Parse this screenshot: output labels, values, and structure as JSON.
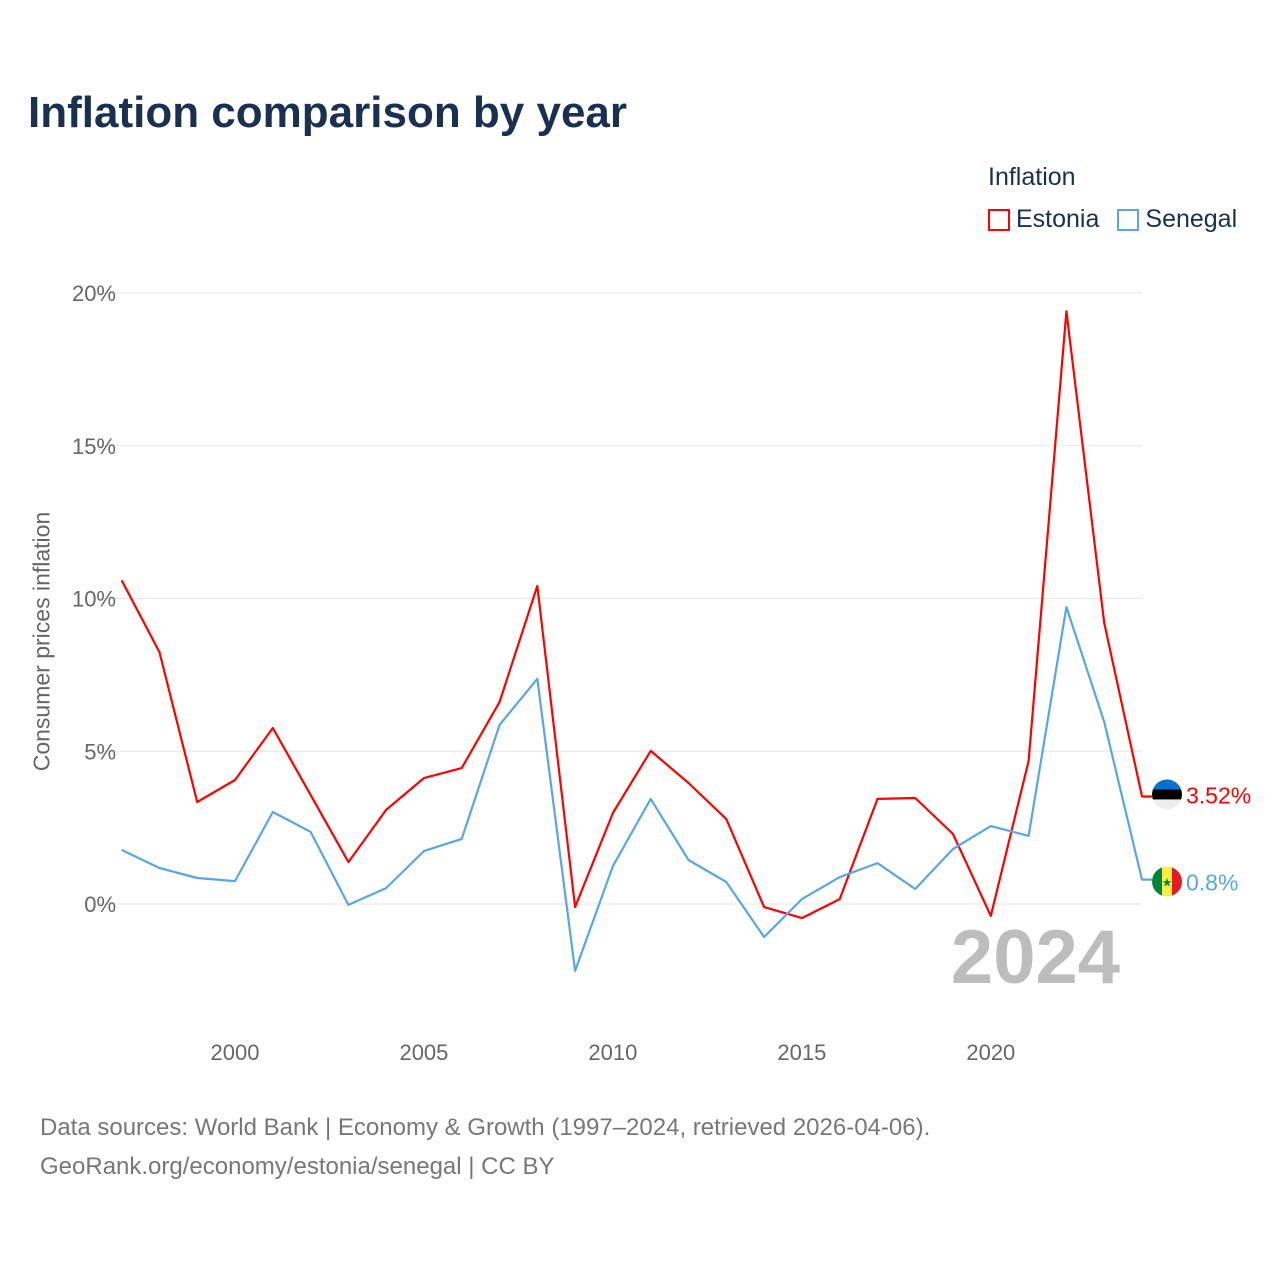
{
  "title": "Inflation comparison by year",
  "legend": {
    "title": "Inflation",
    "items": [
      {
        "name": "Estonia",
        "color": "#ff0000"
      },
      {
        "name": "Senegal",
        "color": "#5aa5ea"
      }
    ]
  },
  "footer": {
    "line1": "Data sources: World Bank | Economy & Growth (1997–2024, retrieved 2026-04-06).",
    "line2": "GeoRank.org/economy/estonia/senegal | CC BY"
  },
  "chart_data": {
    "type": "line",
    "title": "Inflation comparison by year",
    "ylabel": "Consumer prices inflation",
    "xlabel": "",
    "x": [
      1997,
      1998,
      1999,
      2000,
      2001,
      2002,
      2003,
      2004,
      2005,
      2006,
      2007,
      2008,
      2009,
      2010,
      2011,
      2012,
      2013,
      2014,
      2015,
      2016,
      2017,
      2018,
      2019,
      2020,
      2021,
      2022,
      2023,
      2024
    ],
    "xlim": [
      1997,
      2024
    ],
    "ylim": [
      -3.5,
      20
    ],
    "xticks": [
      2000,
      2005,
      2010,
      2015,
      2020
    ],
    "yticks": [
      0,
      5,
      10,
      15,
      20
    ],
    "ytick_labels": [
      "0%",
      "5%",
      "10%",
      "15%",
      "20%"
    ],
    "grid": true,
    "legend_position": "top-right",
    "year_watermark": "2024",
    "series": [
      {
        "name": "Estonia",
        "color": "#ff0000",
        "end_label": "3.52%",
        "values": [
          10.6,
          8.25,
          3.34,
          4.06,
          5.76,
          3.57,
          1.37,
          3.08,
          4.12,
          4.45,
          6.61,
          10.41,
          -0.1,
          2.98,
          5.01,
          3.96,
          2.78,
          -0.1,
          -0.46,
          0.16,
          3.44,
          3.47,
          2.29,
          -0.39,
          4.68,
          19.4,
          9.2,
          3.52
        ]
      },
      {
        "name": "Senegal",
        "color": "#5aa5ea",
        "end_label": "0.8%",
        "values": [
          1.77,
          1.18,
          0.85,
          0.75,
          3.01,
          2.36,
          -0.03,
          0.52,
          1.73,
          2.13,
          5.86,
          7.37,
          -2.19,
          1.24,
          3.44,
          1.44,
          0.72,
          -1.08,
          0.16,
          0.88,
          1.34,
          0.49,
          1.8,
          2.55,
          2.23,
          9.72,
          5.96,
          0.8
        ]
      }
    ]
  }
}
